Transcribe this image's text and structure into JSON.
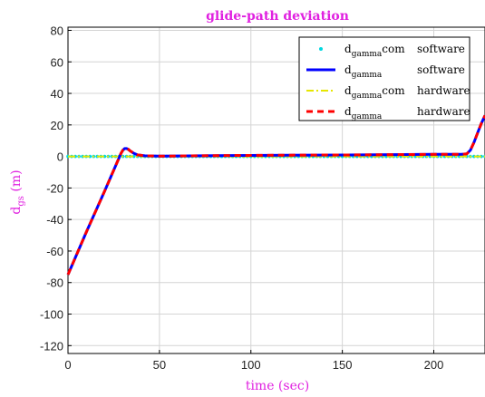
{
  "chart_data": {
    "type": "line",
    "title": "glide-path deviation",
    "xlabel": "time (sec)",
    "ylabel": {
      "main": "d",
      "sub": "gs",
      "unit": " (m)"
    },
    "xlim": [
      0,
      228
    ],
    "ylim": [
      -125,
      82
    ],
    "xticks": [
      0,
      50,
      100,
      150,
      200
    ],
    "yticks": [
      80,
      60,
      40,
      20,
      0,
      -20,
      -40,
      -60,
      -80,
      -100,
      -120
    ],
    "grid": true,
    "legend_position": "top-right",
    "legend": [
      {
        "main": "d",
        "sub": "gamma",
        "suffix": "com",
        "desc": "software",
        "style": "markers",
        "color": "#00d8e0"
      },
      {
        "main": "d",
        "sub": "gamma",
        "suffix": "",
        "desc": "software",
        "style": "solid",
        "color": "#0000ff"
      },
      {
        "main": "d",
        "sub": "gamma",
        "suffix": "com",
        "desc": "hardware",
        "style": "dashdot",
        "color": "#e6e600"
      },
      {
        "main": "d",
        "sub": "gamma",
        "suffix": "",
        "desc": "hardware",
        "style": "dashed",
        "color": "#ff0000"
      }
    ],
    "series": [
      {
        "x": [
          0,
          228
        ],
        "y": [
          0,
          0
        ]
      },
      {
        "x": [
          0,
          10,
          20,
          26,
          29,
          30,
          31,
          32,
          33,
          34,
          36,
          38,
          42,
          50,
          80,
          120,
          160,
          200,
          215,
          218,
          220,
          222,
          224,
          226,
          228
        ],
        "y": [
          -75,
          -48,
          -22,
          -6,
          2,
          4,
          5,
          5,
          4.5,
          3.5,
          2,
          1,
          0.4,
          0.2,
          0.5,
          0.8,
          1,
          1.3,
          1.4,
          1.6,
          4,
          9,
          15,
          21,
          26
        ]
      },
      {
        "x": [
          0,
          228
        ],
        "y": [
          0,
          0
        ]
      },
      {
        "x": [
          0,
          10,
          20,
          26,
          29,
          30,
          31,
          32,
          33,
          34,
          36,
          38,
          42,
          50,
          80,
          120,
          160,
          200,
          215,
          218,
          220,
          222,
          224,
          226,
          228
        ],
        "y": [
          -75,
          -48,
          -22,
          -6,
          2,
          4,
          5,
          5,
          4.5,
          3.5,
          2,
          1,
          0.4,
          0.2,
          0.5,
          0.8,
          1,
          1.3,
          1.4,
          1.6,
          4,
          9,
          15,
          21,
          26
        ]
      }
    ]
  }
}
